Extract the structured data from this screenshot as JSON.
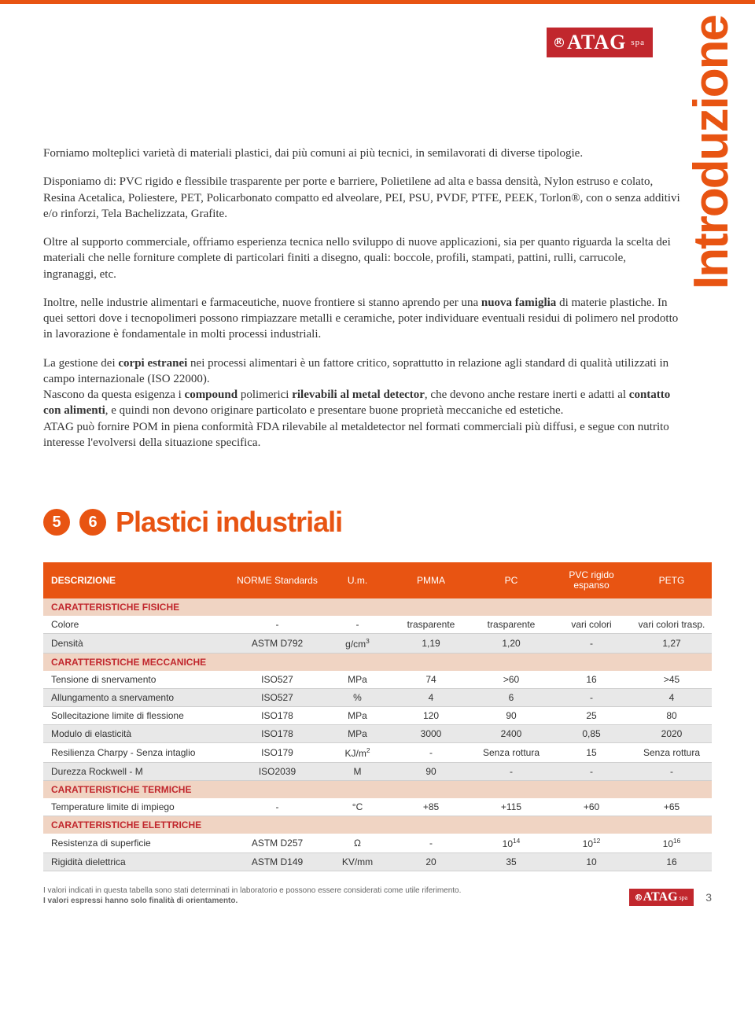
{
  "colors": {
    "accent": "#e85412",
    "logo_bg": "#c1272d",
    "section_bg": "#f0d4c3",
    "alt_row": "#e8e8e8"
  },
  "logo": {
    "text": "ATAG",
    "suffix": "spa"
  },
  "vertical_title": "Introduzione",
  "paragraphs": {
    "p1": "Forniamo molteplici varietà di materiali plastici, dai più comuni ai più tecnici, in semilavorati di diverse tipologie.",
    "p2": "Disponiamo di: PVC rigido e flessibile trasparente per porte e barriere, Polietilene ad alta e bassa densità, Nylon estruso e colato, Resina Acetalica, Poliestere, PET, Policarbonato compatto ed alveolare, PEI, PSU, PVDF, PTFE, PEEK, Torlon®, con o senza additivi e/o rinforzi, Tela Bachelizzata, Grafite.",
    "p3": "Oltre al supporto commerciale, offriamo esperienza tecnica nello sviluppo di nuove applicazioni, sia per quanto riguarda la scelta dei materiali che nelle forniture complete di particolari finiti a disegno, quali: boccole, profili, stampati, pattini, rulli, carrucole, ingranaggi, etc.",
    "p4_html": "Inoltre, nelle industrie alimentari e farmaceutiche, nuove frontiere si stanno aprendo per una <b>nuova famiglia</b> di materie plastiche. In quei settori dove i tecnopolimeri possono rimpiazzare metalli e ceramiche, poter individuare eventuali residui di polimero nel prodotto in lavorazione è fondamentale in molti processi industriali.",
    "p5_html": "La gestione dei <b>corpi estranei</b> nei processi alimentari è un fattore critico, soprattutto in relazione agli standard di qualità utilizzati in campo internazionale (ISO 22000).<br>Nascono da questa esigenza i <b>compound</b> polimerici <b>rilevabili al metal detector</b>, che devono anche restare inerti e adatti al <b>contatto con alimenti</b>, e quindi non devono originare particolato e presentare buone proprietà meccaniche ed estetiche.<br>ATAG può fornire POM in piena conformità FDA rilevabile al metaldetector nel formati commerciali più diffusi, e segue con nutrito interesse l'evolversi della situazione specifica."
  },
  "section": {
    "badge1": "5",
    "badge2": "6",
    "title": "Plastici industriali"
  },
  "table": {
    "headers": [
      "DESCRIZIONE",
      "NORME Standards",
      "U.m.",
      "PMMA",
      "PC",
      "PVC rigido espanso",
      "PETG"
    ],
    "col_widths": [
      "28%",
      "14%",
      "10%",
      "12%",
      "12%",
      "12%",
      "12%"
    ],
    "sections": [
      {
        "label": "CARATTERISTICHE FISICHE",
        "rows": [
          {
            "alt": false,
            "cells": [
              "Colore",
              "-",
              "-",
              "trasparente",
              "trasparente",
              "vari colori",
              "vari colori trasp."
            ]
          },
          {
            "alt": true,
            "cells_html": [
              "Densità",
              "ASTM D792",
              "g/cm<sup>3</sup>",
              "1,19",
              "1,20",
              "-",
              "1,27"
            ]
          }
        ]
      },
      {
        "label": "CARATTERISTICHE MECCANICHE",
        "rows": [
          {
            "alt": false,
            "cells": [
              "Tensione di snervamento",
              "ISO527",
              "MPa",
              "74",
              ">60",
              "16",
              ">45"
            ]
          },
          {
            "alt": true,
            "cells": [
              "Allungamento a snervamento",
              "ISO527",
              "%",
              "4",
              "6",
              "-",
              "4"
            ]
          },
          {
            "alt": false,
            "cells": [
              "Sollecitazione limite di flessione",
              "ISO178",
              "MPa",
              "120",
              "90",
              "25",
              "80"
            ]
          },
          {
            "alt": true,
            "cells": [
              "Modulo di elasticità",
              "ISO178",
              "MPa",
              "3000",
              "2400",
              "0,85",
              "2020"
            ]
          },
          {
            "alt": false,
            "cells_html": [
              "Resilienza Charpy - Senza intaglio",
              "ISO179",
              "KJ/m<sup>2</sup>",
              "-",
              "Senza rottura",
              "15",
              "Senza rottura"
            ]
          },
          {
            "alt": true,
            "cells": [
              "Durezza Rockwell - M",
              "ISO2039",
              "M",
              "90",
              "-",
              "-",
              "-"
            ]
          }
        ]
      },
      {
        "label": "CARATTERISTICHE TERMICHE",
        "rows": [
          {
            "alt": false,
            "cells": [
              "Temperature limite di impiego",
              "-",
              "°C",
              "+85",
              "+115",
              "+60",
              "+65"
            ]
          }
        ]
      },
      {
        "label": "CARATTERISTICHE ELETTRICHE",
        "rows": [
          {
            "alt": false,
            "cells_html": [
              "Resistenza di superficie",
              "ASTM D257",
              "Ω",
              "-",
              "10<sup>14</sup>",
              "10<sup>12</sup>",
              "10<sup>16</sup>"
            ]
          },
          {
            "alt": true,
            "cells": [
              "Rigidità dielettrica",
              "ASTM D149",
              "KV/mm",
              "20",
              "35",
              "10",
              "16"
            ]
          }
        ]
      }
    ]
  },
  "footer": {
    "line1": "I valori indicati in questa tabella sono stati determinati in laboratorio e possono essere considerati come utile riferimento.",
    "line2": "I valori espressi hanno solo finalità di orientamento.",
    "page": "3"
  }
}
